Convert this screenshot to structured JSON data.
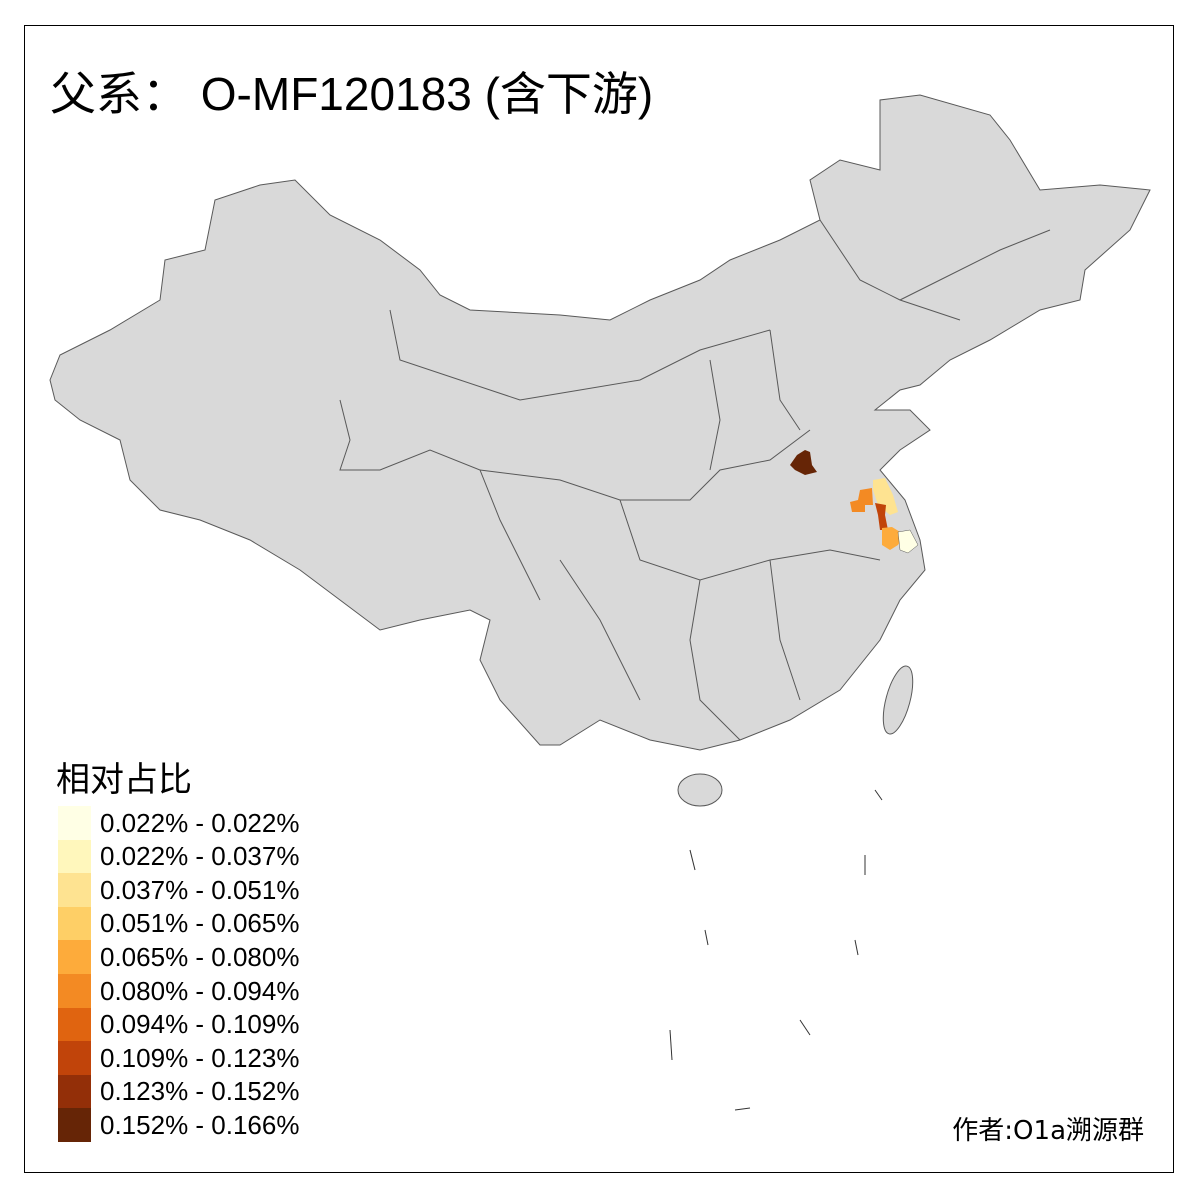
{
  "title": "父系： O-MF120183 (含下游)",
  "legend": {
    "title": "相对占比",
    "items": [
      {
        "label": "0.022% - 0.022%",
        "color": "#FFFFE5"
      },
      {
        "label": "0.022% - 0.037%",
        "color": "#FFF7BC"
      },
      {
        "label": "0.037% - 0.051%",
        "color": "#FEE391"
      },
      {
        "label": "0.051% - 0.065%",
        "color": "#FECF66"
      },
      {
        "label": "0.065% - 0.080%",
        "color": "#FDAB3B"
      },
      {
        "label": "0.080% - 0.094%",
        "color": "#F38A23"
      },
      {
        "label": "0.094% - 0.109%",
        "color": "#E06410"
      },
      {
        "label": "0.109% - 0.123%",
        "color": "#C1440A"
      },
      {
        "label": "0.123% - 0.152%",
        "color": "#932F08"
      },
      {
        "label": "0.152% - 0.166%",
        "color": "#662506"
      }
    ]
  },
  "map": {
    "base_color": "#D9D9D9",
    "border_color": "#595959"
  },
  "credit": "作者:O1a溯源群"
}
